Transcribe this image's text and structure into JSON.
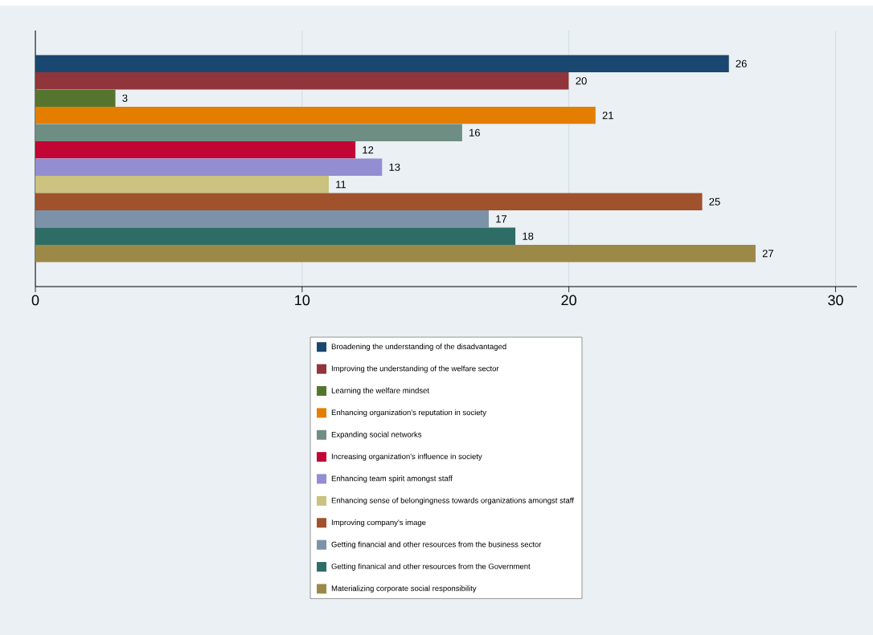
{
  "chart_data": {
    "type": "bar",
    "orientation": "horizontal",
    "categories": [
      null
    ],
    "series": [
      {
        "name": "Broadening the understanding of the disadvantaged",
        "color": "#1a476f",
        "values": [
          26
        ]
      },
      {
        "name": "Improving the understanding of the welfare sector",
        "color": "#90353b",
        "values": [
          20
        ]
      },
      {
        "name": "Learning the welfare mindset",
        "color": "#55752f",
        "values": [
          3
        ]
      },
      {
        "name": "Enhancing organization's reputation in society",
        "color": "#e37e00",
        "values": [
          21
        ]
      },
      {
        "name": "Expanding social networks",
        "color": "#6e8e84",
        "values": [
          16
        ]
      },
      {
        "name": "Increasing organization's influence in society",
        "color": "#c10534",
        "values": [
          12
        ]
      },
      {
        "name": "Enhancing team spirit amongst staff",
        "color": "#938dd2",
        "values": [
          13
        ]
      },
      {
        "name": "Enhancing sense of belongingness towards organizations amongst staff",
        "color": "#cac27e",
        "values": [
          11
        ]
      },
      {
        "name": "Improving company's image",
        "color": "#a0522d",
        "values": [
          25
        ]
      },
      {
        "name": "Getting financial and other resources from the business sector",
        "color": "#7b92a8",
        "values": [
          17
        ]
      },
      {
        "name": "Getting finanical and other resources from the Government",
        "color": "#2d6d66",
        "values": [
          18
        ]
      },
      {
        "name": "Materializing corporate social responsibility",
        "color": "#9c8847",
        "values": [
          27
        ]
      }
    ],
    "xlim": [
      0,
      30.8
    ],
    "xticks": [
      0,
      10,
      20,
      30
    ],
    "grid": "x",
    "legend": "bottom",
    "data_labels": true
  }
}
